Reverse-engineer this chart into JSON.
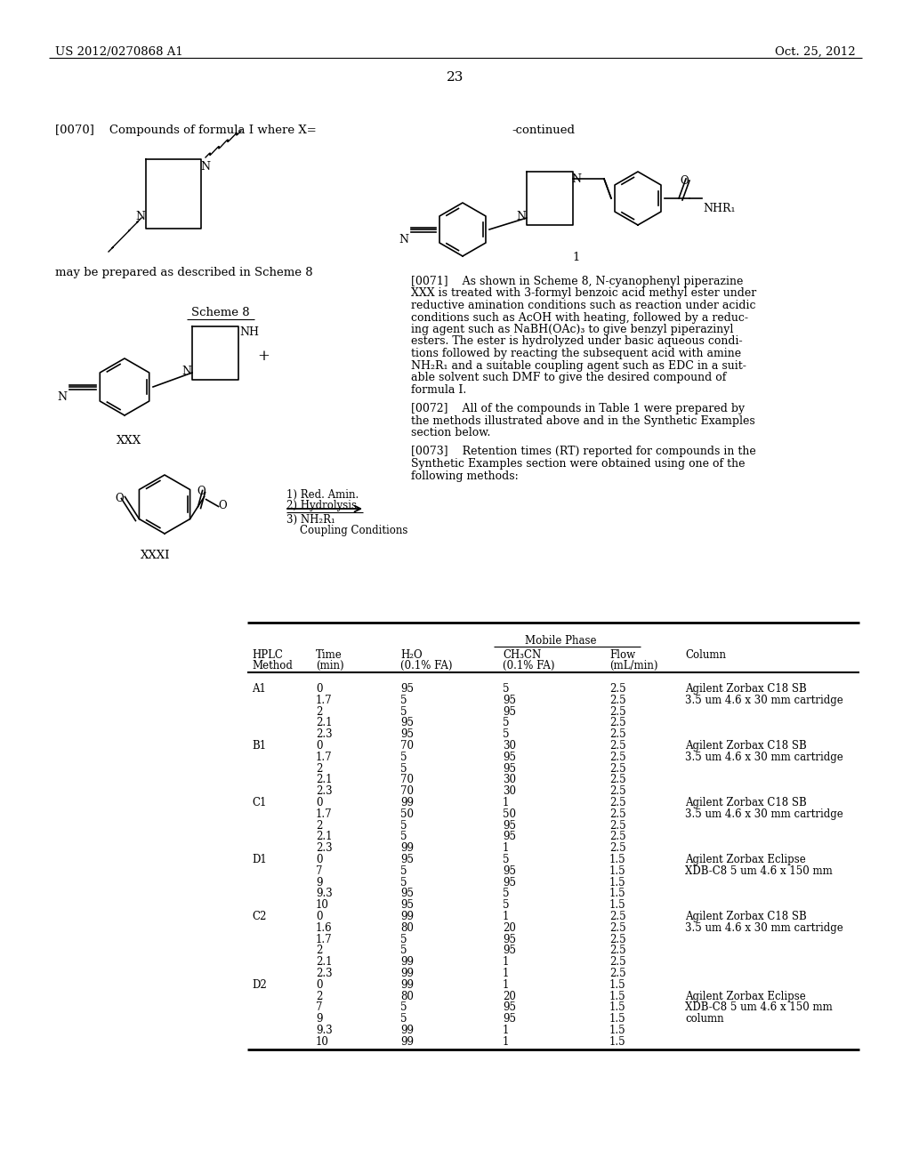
{
  "header_left": "US 2012/0270868 A1",
  "header_right": "Oct. 25, 2012",
  "page_number": "23",
  "para_0070": "[0070]    Compounds of formula I where X=",
  "para_scheme8": "may be prepared as described in Scheme 8",
  "scheme8_label": "Scheme 8",
  "xxx_label": "XXX",
  "xxxi_label": "XXXI",
  "continued_label": "-continued",
  "formula_i_label": "1",
  "reaction_steps": [
    "1) Red. Amin.",
    "2) Hydrolysis",
    "3) NH₂R₁",
    "    Coupling Conditions"
  ],
  "lines71": [
    "[0071]    As shown in Scheme 8, N-cyanophenyl piperazine",
    "XXX is treated with 3-formyl benzoic acid methyl ester under",
    "reductive amination conditions such as reaction under acidic",
    "conditions such as AcOH with heating, followed by a reduc-",
    "ing agent such as NaBH(OAc)₃ to give benzyl piperazinyl",
    "esters. The ester is hydrolyzed under basic aqueous condi-",
    "tions followed by reacting the subsequent acid with amine",
    "NH₂R₁ and a suitable coupling agent such as EDC in a suit-",
    "able solvent such DMF to give the desired compound of",
    "formula I."
  ],
  "lines72": [
    "[0072]    All of the compounds in Table 1 were prepared by",
    "the methods illustrated above and in the Synthetic Examples",
    "section below."
  ],
  "lines73": [
    "[0073]    Retention times (RT) reported for compounds in the",
    "Synthetic Examples section were obtained using one of the",
    "following methods:"
  ],
  "table_col_headers_line1": [
    "HPLC",
    "Time",
    "H₂O",
    "CH₃CN",
    "Flow",
    "Column"
  ],
  "table_col_headers_line2": [
    "Method",
    "(min)",
    "(0.1% FA)",
    "(0.1% FA)",
    "(mL/min)",
    ""
  ],
  "table_data": [
    [
      "A1",
      "0",
      "95",
      "5",
      "2.5",
      "Agilent Zorbax C18 SB"
    ],
    [
      "",
      "1.7",
      "5",
      "95",
      "2.5",
      "3.5 um 4.6 x 30 mm cartridge"
    ],
    [
      "",
      "2",
      "5",
      "95",
      "2.5",
      ""
    ],
    [
      "",
      "2.1",
      "95",
      "5",
      "2.5",
      ""
    ],
    [
      "",
      "2.3",
      "95",
      "5",
      "2.5",
      ""
    ],
    [
      "B1",
      "0",
      "70",
      "30",
      "2.5",
      "Agilent Zorbax C18 SB"
    ],
    [
      "",
      "1.7",
      "5",
      "95",
      "2.5",
      "3.5 um 4.6 x 30 mm cartridge"
    ],
    [
      "",
      "2",
      "5",
      "95",
      "2.5",
      ""
    ],
    [
      "",
      "2.1",
      "70",
      "30",
      "2.5",
      ""
    ],
    [
      "",
      "2.3",
      "70",
      "30",
      "2.5",
      ""
    ],
    [
      "C1",
      "0",
      "99",
      "1",
      "2.5",
      "Agilent Zorbax C18 SB"
    ],
    [
      "",
      "1.7",
      "50",
      "50",
      "2.5",
      "3.5 um 4.6 x 30 mm cartridge"
    ],
    [
      "",
      "2",
      "5",
      "95",
      "2.5",
      ""
    ],
    [
      "",
      "2.1",
      "5",
      "95",
      "2.5",
      ""
    ],
    [
      "",
      "2.3",
      "99",
      "1",
      "2.5",
      ""
    ],
    [
      "D1",
      "0",
      "95",
      "5",
      "1.5",
      "Agilent Zorbax Eclipse"
    ],
    [
      "",
      "7",
      "5",
      "95",
      "1.5",
      "XDB-C8 5 um 4.6 x 150 mm"
    ],
    [
      "",
      "9",
      "5",
      "95",
      "1.5",
      ""
    ],
    [
      "",
      "9.3",
      "95",
      "5",
      "1.5",
      ""
    ],
    [
      "",
      "10",
      "95",
      "5",
      "1.5",
      ""
    ],
    [
      "C2",
      "0",
      "99",
      "1",
      "2.5",
      "Agilent Zorbax C18 SB"
    ],
    [
      "",
      "1.6",
      "80",
      "20",
      "2.5",
      "3.5 um 4.6 x 30 mm cartridge"
    ],
    [
      "",
      "1.7",
      "5",
      "95",
      "2.5",
      ""
    ],
    [
      "",
      "2",
      "5",
      "95",
      "2.5",
      ""
    ],
    [
      "",
      "2.1",
      "99",
      "1",
      "2.5",
      ""
    ],
    [
      "",
      "2.3",
      "99",
      "1",
      "2.5",
      ""
    ],
    [
      "D2",
      "0",
      "99",
      "1",
      "1.5",
      ""
    ],
    [
      "",
      "2",
      "80",
      "20",
      "1.5",
      "Agilent Zorbax Eclipse"
    ],
    [
      "",
      "7",
      "5",
      "95",
      "1.5",
      "XDB-C8 5 um 4.6 x 150 mm"
    ],
    [
      "",
      "9",
      "5",
      "95",
      "1.5",
      "column"
    ],
    [
      "",
      "9.3",
      "99",
      "1",
      "1.5",
      ""
    ],
    [
      "",
      "10",
      "99",
      "1",
      "1.5",
      ""
    ]
  ],
  "bg_color": "#ffffff"
}
